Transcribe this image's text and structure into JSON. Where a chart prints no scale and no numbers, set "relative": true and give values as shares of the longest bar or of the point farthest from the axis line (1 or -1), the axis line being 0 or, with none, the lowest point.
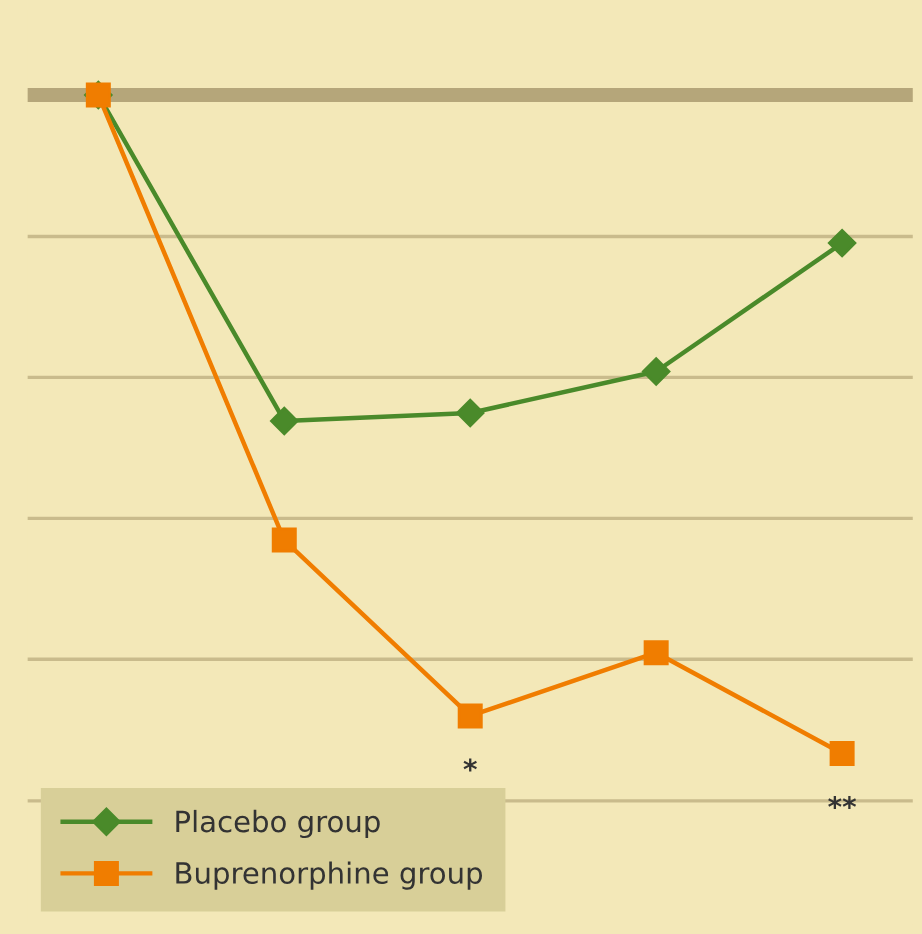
{
  "chart_data": {
    "type": "line",
    "relative": true,
    "categories": [
      null,
      null,
      null,
      null,
      null
    ],
    "series": [
      {
        "name": "Placebo group",
        "color": "#4a8a2a",
        "marker": "diamond",
        "values": [
          0,
          -0.495,
          -0.483,
          -0.42,
          -0.225
        ]
      },
      {
        "name": "Buprenorphine group",
        "color": "#f07d00",
        "marker": "square",
        "values": [
          0,
          -0.676,
          -0.943,
          -0.847,
          -1
        ]
      }
    ],
    "ref_lines": [
      {
        "axis": "y",
        "value": -0.215,
        "color": "#c9bb8c"
      },
      {
        "axis": "y",
        "value": -0.429,
        "color": "#c9bb8c"
      },
      {
        "axis": "y",
        "value": -0.643,
        "color": "#c9bb8c"
      },
      {
        "axis": "y",
        "value": -0.857,
        "color": "#c9bb8c"
      },
      {
        "axis": "y",
        "value": -1.072,
        "color": "#c9bb8c"
      }
    ],
    "annotations": [
      {
        "text": "*",
        "y": -0.943
      },
      {
        "text": "**",
        "y": -1
      }
    ],
    "legend": "bottom left",
    "line_style": "solid"
  }
}
